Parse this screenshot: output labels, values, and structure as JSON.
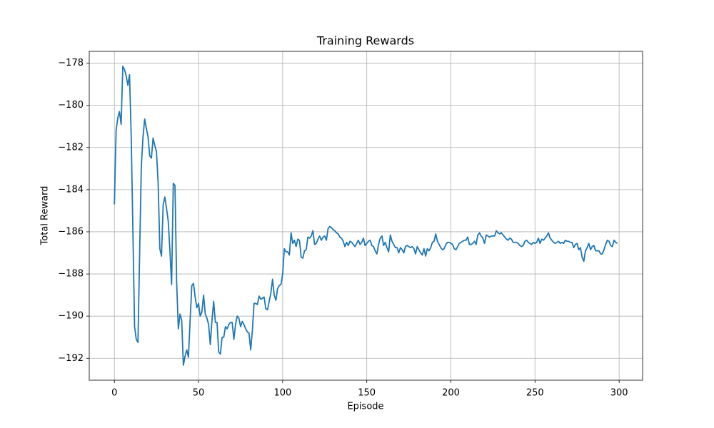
{
  "chart_data": {
    "type": "line",
    "title": "Training Rewards",
    "xlabel": "Episode",
    "ylabel": "Total Reward",
    "color": "#1f77b4",
    "grid": true,
    "xlim": [
      -14.95,
      313.95
    ],
    "ylim": [
      -193.04,
      -177.44
    ],
    "xticks": [
      0,
      50,
      100,
      150,
      200,
      250,
      300
    ],
    "yticks": [
      {
        "value": -192,
        "label": "−192"
      },
      {
        "value": -190,
        "label": "−190"
      },
      {
        "value": -188,
        "label": "−188"
      },
      {
        "value": -186,
        "label": "−186"
      },
      {
        "value": -184,
        "label": "−184"
      },
      {
        "value": -182,
        "label": "−182"
      },
      {
        "value": -180,
        "label": "−180"
      },
      {
        "value": -178,
        "label": "−178"
      }
    ],
    "x": [
      0,
      1,
      2,
      3,
      4,
      5,
      6,
      7,
      8,
      9,
      10,
      11,
      12,
      13,
      14,
      15,
      16,
      17,
      18,
      19,
      20,
      21,
      22,
      23,
      24,
      25,
      26,
      27,
      28,
      29,
      30,
      31,
      32,
      33,
      34,
      35,
      36,
      37,
      38,
      39,
      40,
      41,
      42,
      43,
      44,
      45,
      46,
      47,
      48,
      49,
      50,
      51,
      52,
      53,
      54,
      55,
      56,
      57,
      58,
      59,
      60,
      61,
      62,
      63,
      64,
      65,
      66,
      67,
      68,
      69,
      70,
      71,
      72,
      73,
      74,
      75,
      76,
      77,
      78,
      79,
      80,
      81,
      82,
      83,
      84,
      85,
      86,
      87,
      88,
      89,
      90,
      91,
      92,
      93,
      94,
      95,
      96,
      97,
      98,
      99,
      100,
      101,
      102,
      103,
      104,
      105,
      106,
      107,
      108,
      109,
      110,
      111,
      112,
      113,
      114,
      115,
      116,
      117,
      118,
      119,
      120,
      121,
      122,
      123,
      124,
      125,
      126,
      127,
      128,
      129,
      130,
      131,
      132,
      133,
      134,
      135,
      136,
      137,
      138,
      139,
      140,
      141,
      142,
      143,
      144,
      145,
      146,
      147,
      148,
      149,
      150,
      151,
      152,
      153,
      154,
      155,
      156,
      157,
      158,
      159,
      160,
      161,
      162,
      163,
      164,
      165,
      166,
      167,
      168,
      169,
      170,
      171,
      172,
      173,
      174,
      175,
      176,
      177,
      178,
      179,
      180,
      181,
      182,
      183,
      184,
      185,
      186,
      187,
      188,
      189,
      190,
      191,
      192,
      193,
      194,
      195,
      196,
      197,
      198,
      199,
      200,
      201,
      202,
      203,
      204,
      205,
      206,
      207,
      208,
      209,
      210,
      211,
      212,
      213,
      214,
      215,
      216,
      217,
      218,
      219,
      220,
      221,
      222,
      223,
      224,
      225,
      226,
      227,
      228,
      229,
      230,
      231,
      232,
      233,
      234,
      235,
      236,
      237,
      238,
      239,
      240,
      241,
      242,
      243,
      244,
      245,
      246,
      247,
      248,
      249,
      250,
      251,
      252,
      253,
      254,
      255,
      256,
      257,
      258,
      259,
      260,
      261,
      262,
      263,
      264,
      265,
      266,
      267,
      268,
      269,
      270,
      271,
      272,
      273,
      274,
      275,
      276,
      277,
      278,
      279,
      280,
      281,
      282,
      283,
      284,
      285,
      286,
      287,
      288,
      289,
      290,
      291,
      292,
      293,
      294,
      295,
      296,
      297,
      298,
      299
    ],
    "values": [
      -184.7,
      -181.2,
      -180.6,
      -180.3,
      -180.9,
      -178.15,
      -178.3,
      -178.6,
      -179.05,
      -178.55,
      -181.5,
      -186.0,
      -190.5,
      -191.1,
      -191.25,
      -187.0,
      -182.9,
      -181.5,
      -180.65,
      -181.1,
      -181.5,
      -182.4,
      -182.5,
      -181.55,
      -181.9,
      -182.2,
      -183.7,
      -186.8,
      -187.15,
      -184.7,
      -184.35,
      -184.9,
      -185.5,
      -186.9,
      -188.5,
      -183.7,
      -183.8,
      -188.4,
      -190.6,
      -189.9,
      -190.2,
      -192.33,
      -191.9,
      -191.6,
      -191.95,
      -190.2,
      -188.55,
      -188.45,
      -189.1,
      -189.6,
      -189.4,
      -190.0,
      -189.8,
      -189.0,
      -189.9,
      -190.1,
      -190.4,
      -191.35,
      -190.2,
      -189.3,
      -190.3,
      -190.3,
      -191.7,
      -191.8,
      -191.0,
      -191.0,
      -190.5,
      -190.6,
      -190.4,
      -190.3,
      -190.3,
      -191.1,
      -190.4,
      -190.0,
      -190.1,
      -190.5,
      -190.25,
      -190.4,
      -190.6,
      -190.75,
      -190.8,
      -191.6,
      -190.7,
      -189.4,
      -189.4,
      -189.45,
      -189.05,
      -189.2,
      -189.15,
      -189.1,
      -189.65,
      -189.7,
      -189.3,
      -188.9,
      -188.25,
      -189.0,
      -189.25,
      -188.7,
      -188.55,
      -188.5,
      -188.0,
      -186.8,
      -186.95,
      -186.95,
      -187.1,
      -186.05,
      -186.55,
      -186.4,
      -186.7,
      -186.35,
      -186.4,
      -187.2,
      -187.25,
      -186.9,
      -186.85,
      -186.25,
      -186.3,
      -186.2,
      -185.95,
      -186.6,
      -186.55,
      -186.35,
      -186.2,
      -186.4,
      -186.25,
      -186.2,
      -186.4,
      -185.85,
      -185.75,
      -185.8,
      -185.9,
      -185.95,
      -186.05,
      -186.1,
      -186.25,
      -186.3,
      -186.45,
      -186.7,
      -186.5,
      -186.65,
      -186.45,
      -186.5,
      -186.6,
      -186.7,
      -186.55,
      -186.4,
      -186.6,
      -186.5,
      -186.3,
      -186.65,
      -186.55,
      -186.45,
      -186.4,
      -186.65,
      -186.7,
      -186.9,
      -187.05,
      -186.6,
      -186.3,
      -186.2,
      -186.65,
      -186.5,
      -186.75,
      -186.95,
      -186.15,
      -186.45,
      -186.6,
      -186.75,
      -186.75,
      -187.0,
      -186.75,
      -186.85,
      -187.0,
      -186.7,
      -186.65,
      -186.7,
      -186.75,
      -186.7,
      -186.8,
      -187.05,
      -186.7,
      -186.85,
      -187.0,
      -187.1,
      -186.8,
      -187.15,
      -186.8,
      -186.9,
      -186.75,
      -186.5,
      -186.45,
      -186.1,
      -186.45,
      -186.6,
      -186.75,
      -186.85,
      -186.8,
      -186.6,
      -186.5,
      -186.5,
      -186.55,
      -186.6,
      -186.8,
      -186.85,
      -186.7,
      -186.55,
      -186.5,
      -186.45,
      -186.4,
      -186.4,
      -186.25,
      -186.6,
      -186.6,
      -186.55,
      -186.45,
      -186.6,
      -186.15,
      -186.05,
      -186.2,
      -186.3,
      -186.55,
      -186.15,
      -186.2,
      -186.25,
      -186.2,
      -186.2,
      -186.2,
      -185.95,
      -186.05,
      -186.1,
      -186.05,
      -186.15,
      -186.25,
      -186.35,
      -186.4,
      -186.3,
      -186.35,
      -186.5,
      -186.5,
      -186.5,
      -186.55,
      -186.65,
      -186.7,
      -186.65,
      -186.45,
      -186.4,
      -186.5,
      -186.55,
      -186.6,
      -186.5,
      -186.55,
      -186.5,
      -186.3,
      -186.55,
      -186.35,
      -186.4,
      -186.3,
      -186.2,
      -186.05,
      -186.3,
      -186.4,
      -186.5,
      -186.55,
      -186.5,
      -186.45,
      -186.55,
      -186.5,
      -186.55,
      -186.4,
      -186.45,
      -186.45,
      -186.5,
      -186.5,
      -186.75,
      -186.6,
      -186.55,
      -186.85,
      -186.75,
      -187.2,
      -187.4,
      -186.9,
      -186.75,
      -186.55,
      -186.85,
      -186.7,
      -186.65,
      -186.9,
      -186.9,
      -186.9,
      -187.05,
      -187.05,
      -186.85,
      -186.6,
      -186.4,
      -186.45,
      -186.65,
      -186.7,
      -186.4,
      -186.5,
      -186.55
    ]
  }
}
